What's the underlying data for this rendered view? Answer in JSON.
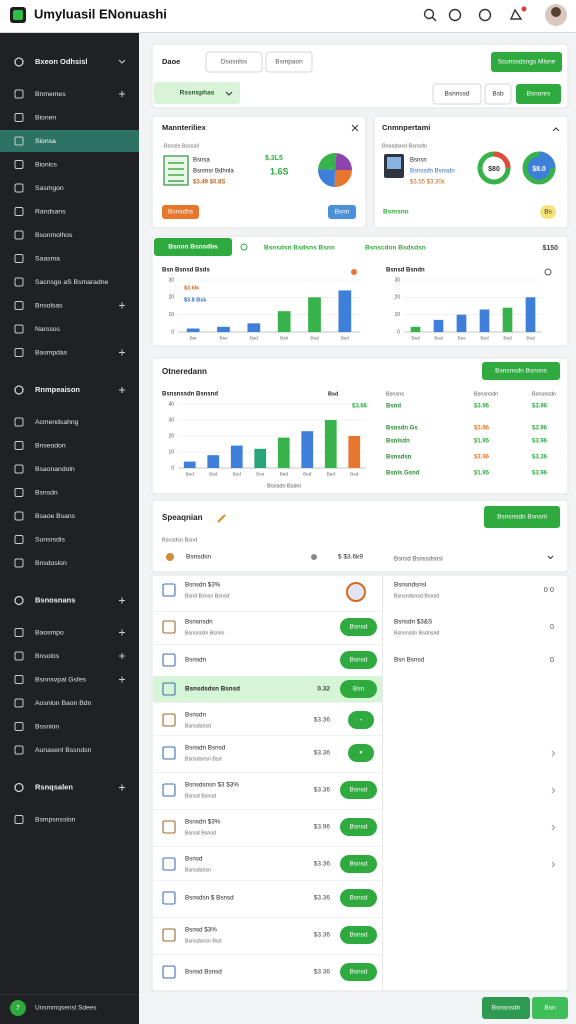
{
  "header": {
    "title": "Umyluasil ENonuashi"
  },
  "sidebar": {
    "active": {
      "group": 0,
      "item": 2
    },
    "groups": [
      {
        "title": "Bxeon Odhsisl",
        "items": [
          {
            "label": "Bnmemes",
            "expandable": true
          },
          {
            "label": "Bionen"
          },
          {
            "label": "Sionsa"
          },
          {
            "label": "Bionics"
          },
          {
            "label": "Sasmgon"
          },
          {
            "label": "Randsans"
          },
          {
            "label": "Bsonmolhos"
          },
          {
            "label": "Saasma"
          },
          {
            "label": "Sacnsgo aS Bsmaradne"
          },
          {
            "label": "Bnsolsas",
            "expandable": true
          },
          {
            "label": "Narssos"
          },
          {
            "label": "Basmpdas",
            "expandable": true
          }
        ]
      },
      {
        "title": "Rnmpeaison",
        "items": [
          {
            "label": "Acmendsahng"
          },
          {
            "label": "Bnseodon"
          },
          {
            "label": "Bsaonandoln"
          },
          {
            "label": "Bsnsdn"
          },
          {
            "label": "Bsaoe Bsans"
          },
          {
            "label": "Sunsrsdis"
          },
          {
            "label": "Bnsdoslon"
          }
        ]
      },
      {
        "title": "Bsnosnans",
        "items": [
          {
            "label": "Baosmpo",
            "expandable": true
          },
          {
            "label": "Bnsolos",
            "expandable": true
          },
          {
            "label": "Bsnnsvpal Gsfes",
            "expandable": true
          },
          {
            "label": "Aosnlon Baon Bdn"
          },
          {
            "label": "Bssnion"
          },
          {
            "label": "Aunasenl Bssndsn"
          }
        ]
      },
      {
        "title": "Rsnqsalen",
        "items": [
          {
            "label": "Bsmpsnsslon"
          }
        ]
      }
    ],
    "footer": {
      "badge": "7",
      "user": "Unsmmqsensl Sdees"
    }
  },
  "filters": {
    "label": "Daoe",
    "inputs": [
      "Dsosnlss",
      "Bsmpaon"
    ],
    "primary": "Scunssdsngs Mlsne",
    "select": "Rssnsphas",
    "buttons": [
      "Bsnnssd",
      "Bsb"
    ],
    "secondary": "Bsnonrs"
  },
  "card_left": {
    "title": "Mannteriliex",
    "subtitle": "Bsnsls Bssssll",
    "lines": [
      "Bsnsa",
      "Bsnmsr Bdhnla",
      "$3.49 $0.8S"
    ],
    "figures": [
      "$.3L5",
      "1.6S"
    ],
    "buttons": [
      "Bsnsdhs",
      "Bsnn"
    ]
  },
  "card_right": {
    "title": "Cnmnpertami",
    "subtitle": "Bnssdsnsl Bsnsdn",
    "lines": [
      "Bsnsn",
      "Bsnssdn Bsnsdn",
      "$3.55 $3.30k"
    ],
    "donuts": [
      "$80",
      "$8.0"
    ],
    "buttons": [
      "Bsmsno",
      "Bs"
    ]
  },
  "toolbar": {
    "select": "Bsnon Bsnsdbs",
    "links": [
      "Bsnsdsn Bsdsns Bsnn",
      "Bsnscdon Bsdsdsn"
    ],
    "total": "$150"
  },
  "charts": [
    {
      "type": "bar",
      "title": "Bsn Bsnsd Bsds",
      "annotations": [
        "$3.6Ik",
        "$3.8 Bsk"
      ],
      "categories": [
        "Bsr",
        "Bss",
        "Bsd",
        "Bsh",
        "Bsd",
        "Bsd"
      ],
      "ylim": [
        0,
        30
      ],
      "yticks": [
        0,
        10,
        20,
        30
      ],
      "grid": true,
      "values": [
        2,
        3,
        5,
        12,
        20,
        24
      ],
      "colors": [
        "#3d7fd9",
        "#3d7fd9",
        "#3d7fd9",
        "#38b24a",
        "#38b24a",
        "#3d7fd9"
      ]
    },
    {
      "type": "bar",
      "title": "Bsnsd Bsndn",
      "categories": [
        "Bsd",
        "Bsd",
        "Bss",
        "Bsd",
        "Bsd",
        "Bsd"
      ],
      "ylim": [
        0,
        30
      ],
      "yticks": [
        0,
        10,
        20,
        30
      ],
      "grid": true,
      "values": [
        3,
        7,
        10,
        13,
        14,
        20
      ],
      "colors": [
        "#38b24a",
        "#3d7fd9",
        "#3d7fd9",
        "#3d7fd9",
        "#38b24a",
        "#3d7fd9"
      ]
    },
    {
      "type": "bar",
      "title": "Bsnsnssdn Bsnsnd",
      "categories": [
        "Bsd",
        "Bsd",
        "Bsd",
        "Bss",
        "Bsd",
        "Bsd",
        "Bsd",
        "Bsd"
      ],
      "ylim": [
        0,
        40
      ],
      "yticks": [
        0,
        10,
        20,
        30,
        40
      ],
      "grid": true,
      "values": [
        4,
        8,
        14,
        12,
        19,
        23,
        30,
        20
      ],
      "colors": [
        "#3d7fd9",
        "#3d7fd9",
        "#3d7fd9",
        "#2aa57a",
        "#38b24a",
        "#3d7fd9",
        "#38b24a",
        "#e8772e"
      ]
    }
  ],
  "overview": {
    "title": "Otneredann",
    "button": "Bsnsnsdn Bsnsns",
    "chart_label": "Bsd",
    "chart_note": "$3.66",
    "footer": "Bsnsdn Bsdnl",
    "table": {
      "headers": [
        "Bsnsns",
        "Bsnsnsdn",
        "Bsnsnsdn"
      ],
      "rows": [
        [
          "Bsnd",
          "$3.96",
          "$3.96"
        ],
        [
          "Bsnsdn Gs",
          "$3.96",
          "$3.96"
        ],
        [
          "Bsnlsdn",
          "$1.95",
          "$3.96"
        ],
        [
          "Bsnsdsn",
          "$3.96",
          "$3.36"
        ],
        [
          "Bsnls Gsnd",
          "$1.95",
          "$3.96"
        ]
      ]
    }
  },
  "spending": {
    "title": "Speaqnian",
    "button": "Bsnsnsdn Bsnsnl",
    "subtitle": "Bsnsdsn Bsnd",
    "row": {
      "name": "Bsnsdsn",
      "amount": "$ $3.6k9",
      "note": "Bsnsd Bsnssdsnsl"
    }
  },
  "list": {
    "highlighted": 3,
    "rows": [
      {
        "title": "Bsnsdn $3%",
        "sub": "Bsnd Bsnsn Bsnsd"
      },
      {
        "title": "Bsnsnsdn",
        "sub": "Bsnsnsdn Bsnsn",
        "button": "Bsnsd"
      },
      {
        "title": "Bsnsdn",
        "button": "Bsnsd"
      },
      {
        "title": "Bsnsdsdsn Bsnsd",
        "amount": "0.32",
        "button": "Bsn"
      },
      {
        "title": "Bsnsdn",
        "sub": "Bsnsdsnsd",
        "amount": "$3.36",
        "button": "-"
      },
      {
        "title": "Bsnsdn Bsnsd",
        "sub": "Bsnsdsnsn Bsd",
        "amount": "$3.36",
        "button": "•"
      },
      {
        "title": "Bsnsdsnsn $3 $3%",
        "sub": "Bsnsd Bsnsd",
        "amount": "$3.36",
        "button": "Bsnsd"
      },
      {
        "title": "Bsnsdn $3%",
        "sub": "Bsnsd Bsnsd",
        "amount": "$3.96",
        "button": "Bsnsd"
      },
      {
        "title": "Bsnsd",
        "sub": "Bsnsdsnsn",
        "amount": "$3.36",
        "button": "Bsnsd"
      },
      {
        "title": "Bsnsdsn $ Bsnsd",
        "amount": "$3.36",
        "button": "Bsnsd"
      },
      {
        "title": "Bsnsd $3%",
        "sub": "Bsnsdsnsn Bsd",
        "amount": "$3.36",
        "button": "Bsnsd"
      },
      {
        "title": "Bsnsd Bsnsd",
        "amount": "$3.36",
        "button": "Bsnsd"
      }
    ],
    "details": [
      {
        "title": "Bsnsndsnsl",
        "sub": "Bsnsndsnsd Bsnsd",
        "value": "0 0"
      },
      {
        "title": "Bsnsdn $3&S",
        "sub": "Bsnsnsdn Bsdnsnd",
        "value": "0"
      },
      {
        "title": "Bsn Bsnsd",
        "value": "0"
      }
    ]
  },
  "actions": [
    "Bsnsnsdn",
    "Bsn"
  ]
}
